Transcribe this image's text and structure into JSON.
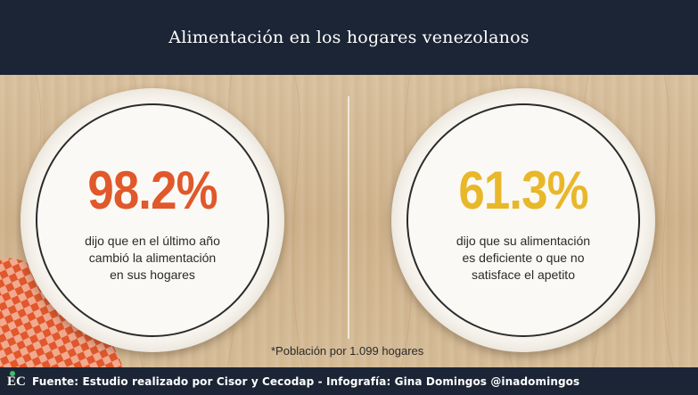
{
  "header": {
    "title": "Alimentación en los hogares venezolanos"
  },
  "stats": [
    {
      "value": "98.2%",
      "text": "dijo que en el último año cambió la alimentación en sus hogares",
      "color": "#e0582b"
    },
    {
      "value": "61.3%",
      "text": "dijo que su alimentación es deficiente o que no satisface el apetito",
      "color": "#e8b72a"
    }
  ],
  "note": "*Población por 1.099 hogares",
  "footer": {
    "logo": "EC",
    "source": "Fuente: Estudio realizado por Cisor y Cecodap - Infografía: Gina Domingos @inadomingos"
  },
  "colors": {
    "header_bg": "#1c2535",
    "wood": "#d2b896",
    "plate": "#f8f5ef",
    "cloth_red": "#e0582b"
  }
}
